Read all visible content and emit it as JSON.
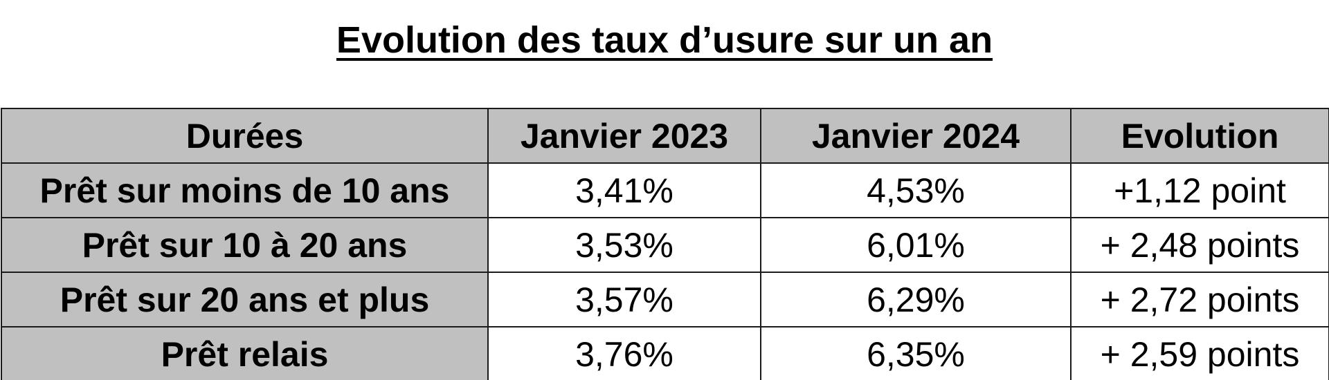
{
  "title": "Evolution des taux d’usure sur un an",
  "table": {
    "headers": [
      "Durées",
      "Janvier 2023",
      "Janvier 2024",
      "Evolution"
    ],
    "rows": [
      [
        "Prêt sur moins de 10 ans",
        "3,41%",
        "4,53%",
        "+1,12 point"
      ],
      [
        "Prêt sur 10 à 20 ans",
        "3,53%",
        "6,01%",
        "+ 2,48 points"
      ],
      [
        "Prêt sur 20 ans et plus",
        "3,57%",
        "6,29%",
        "+ 2,72 points"
      ],
      [
        "Prêt relais",
        "3,76%",
        "6,35%",
        "+ 2,59 points"
      ]
    ]
  },
  "colors": {
    "header_background": "#c0c0c0",
    "cell_background": "#ffffff",
    "border": "#1a1a1a"
  }
}
